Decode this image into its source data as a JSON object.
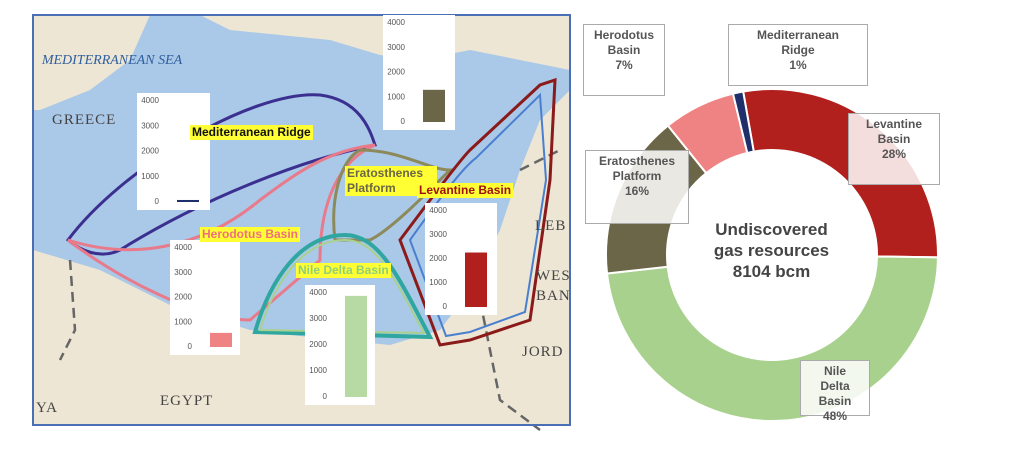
{
  "map": {
    "sea_label": "MEDITERRANEAN SEA",
    "places": [
      "GREECE",
      "EGYPT",
      "LEB",
      "WES BAN",
      "JORD",
      "YA"
    ]
  },
  "chart_data": [
    {
      "type": "bar",
      "title": "Mediterranean Ridge",
      "values": [
        80
      ],
      "color": "#1f2f6b",
      "ylim": [
        0,
        4000
      ],
      "yticks": [
        0,
        1000,
        2000,
        3000,
        4000
      ]
    },
    {
      "type": "bar",
      "title": "Eratosthenes Platform",
      "values": [
        1300
      ],
      "color": "#6b6647",
      "ylim": [
        0,
        4000
      ],
      "yticks": [
        0,
        1000,
        2000,
        3000,
        4000
      ]
    },
    {
      "type": "bar",
      "title": "Herodotus Basin",
      "values": [
        570
      ],
      "color": "#ef8383",
      "ylim": [
        0,
        4000
      ],
      "yticks": [
        0,
        1000,
        2000,
        3000,
        4000
      ]
    },
    {
      "type": "bar",
      "title": "Levantine Basin",
      "values": [
        2270
      ],
      "color": "#b2201e",
      "ylim": [
        0,
        4000
      ],
      "yticks": [
        0,
        1000,
        2000,
        3000,
        4000
      ]
    },
    {
      "type": "bar",
      "title": "Nile Delta Basin",
      "values": [
        3890
      ],
      "color": "#b7d9a3",
      "ylim": [
        0,
        4000
      ],
      "yticks": [
        0,
        1000,
        2000,
        3000,
        4000
      ]
    },
    {
      "type": "pie",
      "center_text": "Undiscovered gas resources 8104 bcm",
      "categories": [
        "Levantine Basin",
        "Nile Delta Basin",
        "Eratosthenes Platform",
        "Herodotus Basin",
        "Mediterranean Ridge"
      ],
      "values": [
        28,
        48,
        16,
        7,
        1
      ],
      "value_labels": [
        "28%",
        "48%",
        "16%",
        "7%",
        "1%"
      ],
      "colors": [
        "#b2201e",
        "#a9d18e",
        "#6b6647",
        "#ef8383",
        "#1f2f6b"
      ]
    }
  ]
}
